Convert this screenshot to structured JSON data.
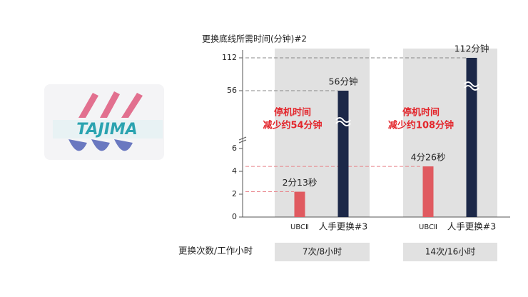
{
  "logo": {
    "text": "TAJIMA"
  },
  "chart_data": {
    "type": "bar",
    "title": "更换底线所需时间(分钟)#2",
    "categories": [
      "7次/8小时",
      "14次/16小时"
    ],
    "row_label": "更换次数/工作小时",
    "series": [
      {
        "name": "UBCⅡ",
        "color": "#e05a60",
        "values": [
          2.2167,
          4.4333
        ],
        "value_labels": [
          "2分13秒",
          "4分26秒"
        ]
      },
      {
        "name": "人手更换#3",
        "color": "#1c2848",
        "values": [
          56,
          112
        ],
        "value_labels": [
          "56分钟",
          "112分钟"
        ]
      }
    ],
    "annotations": [
      {
        "lines": [
          "停机时间",
          "减少约54分钟"
        ],
        "color": "#e3262c"
      },
      {
        "lines": [
          "停机时间",
          "减少约108分钟"
        ],
        "color": "#e3262c"
      }
    ],
    "ylim": [
      0,
      112
    ],
    "yticks": [
      0,
      2,
      4,
      6,
      56,
      112
    ],
    "broken_axis": true
  }
}
